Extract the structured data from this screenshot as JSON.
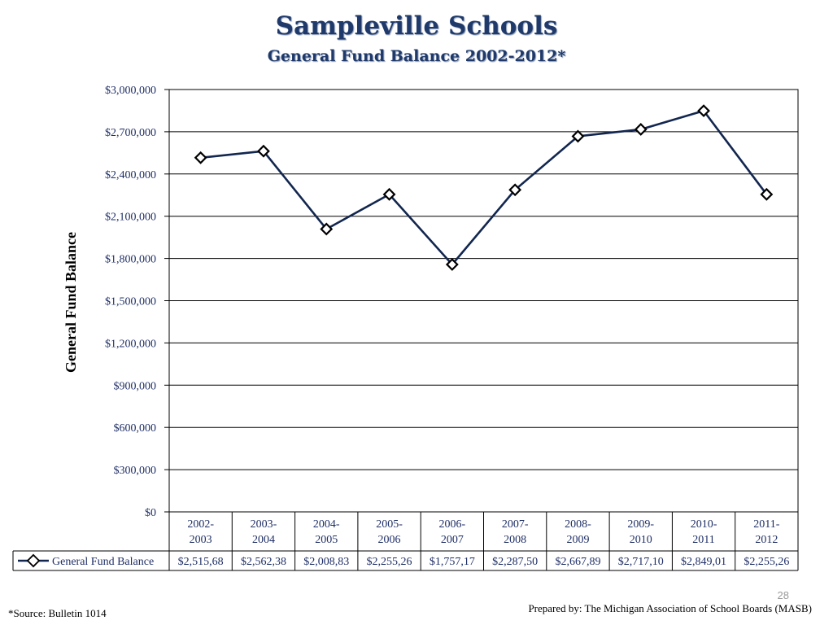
{
  "slide": {
    "page_number": "28",
    "source_note": "*Source: Bulletin 1014",
    "prepared_by": "Prepared by: The Michigan Association of School Boards (MASB)"
  },
  "colors": {
    "title": "#1f3a6a",
    "series_line": "#12264f",
    "text": "#1f2f66",
    "grid": "#000000"
  },
  "chart_data": {
    "type": "line",
    "title": "Sampleville Schools",
    "subtitle": "General Fund Balance 2002-2012*",
    "xlabel": "",
    "ylabel": "General Fund Balance",
    "ylim": [
      0,
      3000000
    ],
    "yticks": [
      0,
      300000,
      600000,
      900000,
      1200000,
      1500000,
      1800000,
      2100000,
      2400000,
      2700000,
      3000000
    ],
    "ytick_labels": [
      "$0",
      "$300,000",
      "$600,000",
      "$900,000",
      "$1,200,000",
      "$1,500,000",
      "$1,800,000",
      "$2,100,000",
      "$2,400,000",
      "$2,700,000",
      "$3,000,000"
    ],
    "grid": true,
    "legend": "data-table",
    "categories": [
      "2002-2003",
      "2003-2004",
      "2004-2005",
      "2005-2006",
      "2006-2007",
      "2007-2008",
      "2008-2009",
      "2009-2010",
      "2010-2011",
      "2011-2012"
    ],
    "category_lines": [
      [
        "2002-",
        "2003"
      ],
      [
        "2003-",
        "2004"
      ],
      [
        "2004-",
        "2005"
      ],
      [
        "2005-",
        "2006"
      ],
      [
        "2006-",
        "2007"
      ],
      [
        "2007-",
        "2008"
      ],
      [
        "2008-",
        "2009"
      ],
      [
        "2009-",
        "2010"
      ],
      [
        "2010-",
        "2011"
      ],
      [
        "2011-",
        "2012"
      ]
    ],
    "series": [
      {
        "name": "General Fund Balance",
        "values": [
          2515680,
          2562380,
          2008830,
          2255260,
          1757170,
          2287500,
          2667890,
          2717100,
          2849010,
          2255260
        ],
        "table_labels": [
          "$2,515,68",
          "$2,562,38",
          "$2,008,83",
          "$2,255,26",
          "$1,757,17",
          "$2,287,50",
          "$2,667,89",
          "$2,717,10",
          "$2,849,01",
          "$2,255,26"
        ]
      }
    ]
  }
}
